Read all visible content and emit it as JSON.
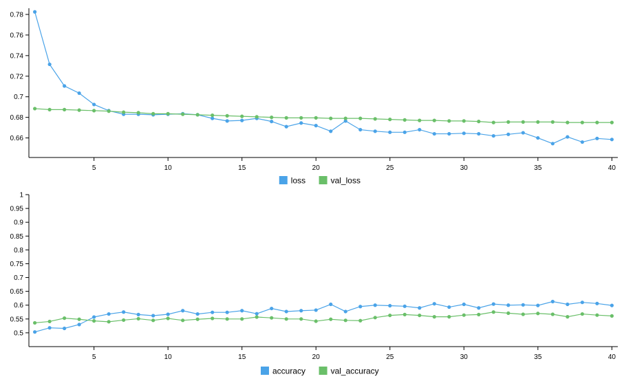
{
  "chart_data": [
    {
      "type": "line",
      "x": [
        1,
        2,
        3,
        4,
        5,
        6,
        7,
        8,
        9,
        10,
        11,
        12,
        13,
        14,
        15,
        16,
        17,
        18,
        19,
        20,
        21,
        22,
        23,
        24,
        25,
        26,
        27,
        28,
        29,
        30,
        31,
        32,
        33,
        34,
        35,
        36,
        37,
        38,
        39,
        40
      ],
      "ylim": [
        0.641,
        0.786
      ],
      "xlim": [
        0.6,
        40.4
      ],
      "xticks": [
        5,
        10,
        15,
        20,
        25,
        30,
        35,
        40
      ],
      "xtick_labels": [
        "5",
        "10",
        "15",
        "20",
        "25",
        "30",
        "35",
        "40"
      ],
      "yticks": [
        0.66,
        0.68,
        0.7,
        0.72,
        0.74,
        0.76,
        0.78
      ],
      "ytick_labels": [
        "0.66",
        "0.68",
        "0.7",
        "0.72",
        "0.74",
        "0.76",
        "0.78"
      ],
      "grid": false,
      "legend": "bottom-center",
      "series": [
        {
          "name": "loss",
          "color": "#4aa3e8",
          "values": [
            0.7825,
            0.7315,
            0.7105,
            0.7035,
            0.6925,
            0.6865,
            0.683,
            0.683,
            0.6825,
            0.683,
            0.6835,
            0.6825,
            0.679,
            0.6765,
            0.677,
            0.679,
            0.676,
            0.671,
            0.6745,
            0.672,
            0.6665,
            0.6765,
            0.668,
            0.6665,
            0.6655,
            0.6655,
            0.668,
            0.664,
            0.664,
            0.6645,
            0.664,
            0.662,
            0.6635,
            0.665,
            0.66,
            0.6545,
            0.661,
            0.656,
            0.6595,
            0.6585
          ]
        },
        {
          "name": "val_loss",
          "color": "#6abf69",
          "values": [
            0.6885,
            0.6875,
            0.6875,
            0.687,
            0.6865,
            0.686,
            0.685,
            0.6845,
            0.6835,
            0.6835,
            0.683,
            0.6825,
            0.682,
            0.6815,
            0.681,
            0.6805,
            0.68,
            0.6795,
            0.6795,
            0.6795,
            0.679,
            0.679,
            0.679,
            0.6785,
            0.678,
            0.6775,
            0.677,
            0.677,
            0.6765,
            0.6765,
            0.676,
            0.675,
            0.6755,
            0.6755,
            0.6755,
            0.6755,
            0.675,
            0.675,
            0.675,
            0.675
          ]
        }
      ]
    },
    {
      "type": "line",
      "x": [
        1,
        2,
        3,
        4,
        5,
        6,
        7,
        8,
        9,
        10,
        11,
        12,
        13,
        14,
        15,
        16,
        17,
        18,
        19,
        20,
        21,
        22,
        23,
        24,
        25,
        26,
        27,
        28,
        29,
        30,
        31,
        32,
        33,
        34,
        35,
        36,
        37,
        38,
        39,
        40
      ],
      "ylim": [
        0.45,
        1.0
      ],
      "xlim": [
        0.6,
        40.4
      ],
      "xticks": [
        5,
        10,
        15,
        20,
        25,
        30,
        35,
        40
      ],
      "xtick_labels": [
        "5",
        "10",
        "15",
        "20",
        "25",
        "30",
        "35",
        "40"
      ],
      "yticks": [
        0.5,
        0.55,
        0.6,
        0.65,
        0.7,
        0.75,
        0.8,
        0.85,
        0.9,
        0.95,
        1
      ],
      "ytick_labels": [
        "0.5",
        "0.55",
        "0.6",
        "0.65",
        "0.7",
        "0.75",
        "0.8",
        "0.85",
        "0.9",
        "0.95",
        "1"
      ],
      "grid": false,
      "legend": "bottom-center",
      "series": [
        {
          "name": "accuracy",
          "color": "#4aa3e8",
          "values": [
            0.503,
            0.518,
            0.516,
            0.53,
            0.557,
            0.568,
            0.575,
            0.566,
            0.562,
            0.567,
            0.58,
            0.568,
            0.574,
            0.574,
            0.58,
            0.569,
            0.588,
            0.577,
            0.58,
            0.582,
            0.603,
            0.577,
            0.595,
            0.6,
            0.598,
            0.596,
            0.59,
            0.605,
            0.593,
            0.603,
            0.59,
            0.604,
            0.6,
            0.601,
            0.599,
            0.613,
            0.603,
            0.61,
            0.606,
            0.599
          ]
        },
        {
          "name": "val_accuracy",
          "color": "#6abf69",
          "values": [
            0.536,
            0.541,
            0.553,
            0.549,
            0.543,
            0.54,
            0.546,
            0.551,
            0.545,
            0.552,
            0.545,
            0.549,
            0.552,
            0.55,
            0.55,
            0.557,
            0.554,
            0.55,
            0.55,
            0.542,
            0.549,
            0.545,
            0.544,
            0.555,
            0.563,
            0.566,
            0.563,
            0.558,
            0.558,
            0.564,
            0.566,
            0.575,
            0.571,
            0.567,
            0.57,
            0.567,
            0.558,
            0.568,
            0.564,
            0.561
          ]
        }
      ]
    }
  ]
}
